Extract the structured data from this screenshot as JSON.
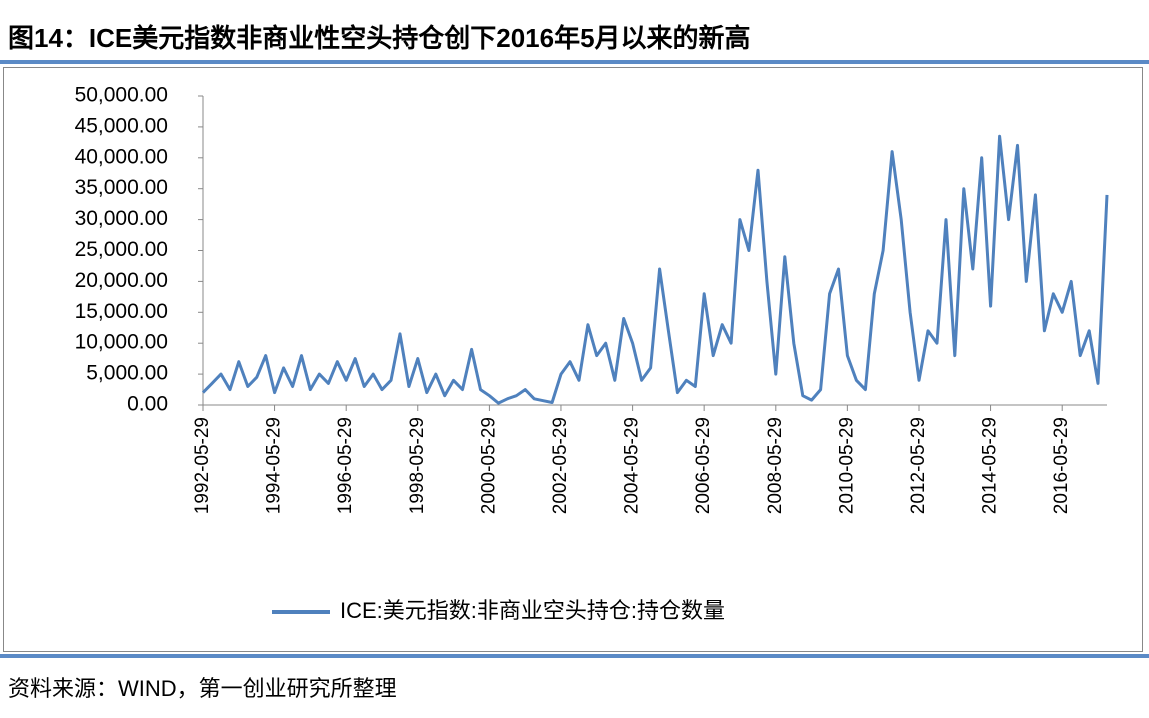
{
  "chart_data": {
    "type": "line",
    "title": "图14：ICE美元指数非商业性空头持仓创下2016年5月以来的新高",
    "source": "资料来源：WIND，第一创业研究所整理",
    "x": [
      "1992-05-29",
      "1992-08-29",
      "1992-11-29",
      "1993-02-28",
      "1993-05-29",
      "1993-08-29",
      "1993-11-29",
      "1994-02-28",
      "1994-05-29",
      "1994-08-29",
      "1994-11-29",
      "1995-02-28",
      "1995-05-29",
      "1995-08-29",
      "1995-11-29",
      "1996-02-28",
      "1996-05-29",
      "1996-08-29",
      "1996-11-29",
      "1997-02-28",
      "1997-05-29",
      "1997-08-29",
      "1997-11-29",
      "1998-02-28",
      "1998-05-29",
      "1998-08-29",
      "1998-11-29",
      "1999-02-28",
      "1999-05-29",
      "1999-08-29",
      "1999-11-29",
      "2000-02-28",
      "2000-05-29",
      "2000-08-29",
      "2000-11-29",
      "2001-02-28",
      "2001-05-29",
      "2001-08-29",
      "2001-11-29",
      "2002-02-28",
      "2002-05-29",
      "2002-08-29",
      "2002-11-29",
      "2003-02-28",
      "2003-05-29",
      "2003-08-29",
      "2003-11-29",
      "2004-02-28",
      "2004-05-29",
      "2004-08-29",
      "2004-11-29",
      "2005-02-28",
      "2005-05-29",
      "2005-08-29",
      "2005-11-29",
      "2006-02-28",
      "2006-05-29",
      "2006-08-29",
      "2006-11-29",
      "2007-02-28",
      "2007-05-29",
      "2007-08-29",
      "2007-11-29",
      "2008-02-28",
      "2008-05-29",
      "2008-08-29",
      "2008-11-29",
      "2009-02-28",
      "2009-05-29",
      "2009-08-29",
      "2009-11-29",
      "2010-02-28",
      "2010-05-29",
      "2010-08-29",
      "2010-11-29",
      "2011-02-28",
      "2011-05-29",
      "2011-08-29",
      "2011-11-29",
      "2012-02-28",
      "2012-05-29",
      "2012-08-29",
      "2012-11-29",
      "2013-02-28",
      "2013-05-29",
      "2013-08-29",
      "2013-11-29",
      "2014-02-28",
      "2014-05-29",
      "2014-08-29",
      "2014-11-29",
      "2015-02-28",
      "2015-05-29",
      "2015-08-29",
      "2015-11-29",
      "2016-02-28",
      "2016-05-29",
      "2016-08-29",
      "2016-11-29",
      "2017-02-28",
      "2017-05-29",
      "2017-08-29"
    ],
    "series": [
      {
        "name": "ICE:美元指数:非商业空头持仓:持仓数量",
        "color": "#4f81bd",
        "values": [
          2000,
          3500,
          5000,
          2500,
          7000,
          3000,
          4500,
          8000,
          2000,
          6000,
          3000,
          8000,
          2500,
          5000,
          3500,
          7000,
          4000,
          7500,
          3000,
          5000,
          2500,
          4000,
          11500,
          3000,
          7500,
          2000,
          5000,
          1500,
          4000,
          2500,
          9000,
          2500,
          1500,
          300,
          1000,
          1500,
          2500,
          1000,
          700,
          400,
          5000,
          7000,
          4000,
          13000,
          8000,
          10000,
          4000,
          14000,
          10000,
          4000,
          6000,
          22000,
          12000,
          2000,
          4000,
          3000,
          18000,
          8000,
          13000,
          10000,
          30000,
          25000,
          38000,
          20000,
          5000,
          24000,
          10000,
          1500,
          800,
          2500,
          18000,
          22000,
          8000,
          4000,
          2500,
          18000,
          25000,
          41000,
          30000,
          15000,
          4000,
          12000,
          10000,
          30000,
          8000,
          35000,
          22000,
          40000,
          16000,
          43500,
          30000,
          42000,
          20000,
          34000,
          12000,
          18000,
          15000,
          20000,
          8000,
          12000,
          3500,
          34000
        ]
      }
    ],
    "xlim": [
      "1992-05-29",
      "2017-08-29"
    ],
    "xticks": [
      "1992-05-29",
      "1994-05-29",
      "1996-05-29",
      "1998-05-29",
      "2000-05-29",
      "2002-05-29",
      "2004-05-29",
      "2006-05-29",
      "2008-05-29",
      "2010-05-29",
      "2012-05-29",
      "2014-05-29",
      "2016-05-29"
    ],
    "ylim": [
      0,
      50000
    ],
    "yticks": [
      {
        "value": 0,
        "label": "0.00"
      },
      {
        "value": 5000,
        "label": "5,000.00"
      },
      {
        "value": 10000,
        "label": "10,000.00"
      },
      {
        "value": 15000,
        "label": "15,000.00"
      },
      {
        "value": 20000,
        "label": "20,000.00"
      },
      {
        "value": 25000,
        "label": "25,000.00"
      },
      {
        "value": 30000,
        "label": "30,000.00"
      },
      {
        "value": 35000,
        "label": "35,000.00"
      },
      {
        "value": 40000,
        "label": "40,000.00"
      },
      {
        "value": 45000,
        "label": "45,000.00"
      },
      {
        "value": 50000,
        "label": "50,000.00"
      }
    ],
    "legend": "bottom"
  }
}
